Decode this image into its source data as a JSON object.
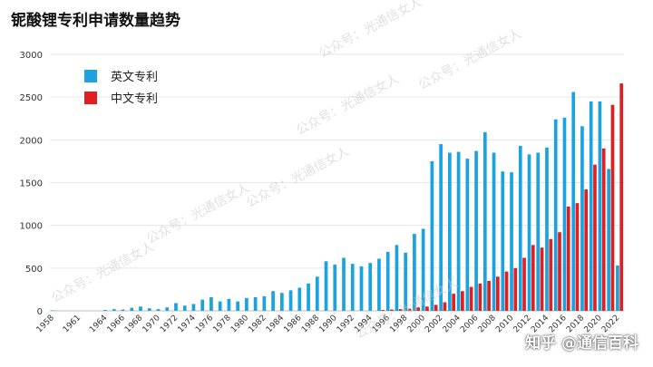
{
  "chart_data": {
    "type": "bar",
    "title": "铌酸锂专利申请数量趋势",
    "xlabel": "",
    "ylabel": "",
    "ylim": [
      0,
      3000
    ],
    "yticks": [
      0,
      500,
      1000,
      1500,
      2000,
      2500,
      3000
    ],
    "grid": true,
    "legend_position": "top-left",
    "categories": [
      "1958",
      "1959",
      "1960",
      "1961",
      "1962",
      "1963",
      "1964",
      "1965",
      "1966",
      "1967",
      "1968",
      "1969",
      "1970",
      "1971",
      "1972",
      "1973",
      "1974",
      "1975",
      "1976",
      "1977",
      "1978",
      "1979",
      "1980",
      "1981",
      "1982",
      "1983",
      "1984",
      "1985",
      "1986",
      "1987",
      "1988",
      "1989",
      "1990",
      "1991",
      "1992",
      "1993",
      "1994",
      "1995",
      "1996",
      "1997",
      "1998",
      "1999",
      "2000",
      "2001",
      "2002",
      "2003",
      "2004",
      "2005",
      "2006",
      "2007",
      "2008",
      "2009",
      "2010",
      "2011",
      "2012",
      "2013",
      "2014",
      "2015",
      "2016",
      "2017",
      "2018",
      "2019",
      "2020",
      "2021",
      "2022"
    ],
    "xtick_labels": [
      "1958",
      "1961",
      "1964",
      "1966",
      "1968",
      "1970",
      "1972",
      "1974",
      "1976",
      "1978",
      "1980",
      "1982",
      "1984",
      "1986",
      "1988",
      "1990",
      "1992",
      "1994",
      "1996",
      "1998",
      "2000",
      "2002",
      "2004",
      "2006",
      "2008",
      "2010",
      "2012",
      "2014",
      "2016",
      "2018",
      "2020",
      "2022"
    ],
    "series": [
      {
        "name": "英文专利",
        "color": "#1aa3e0",
        "values": [
          5,
          0,
          0,
          0,
          0,
          0,
          10,
          20,
          15,
          35,
          50,
          30,
          20,
          40,
          90,
          60,
          80,
          130,
          160,
          110,
          140,
          110,
          150,
          160,
          170,
          230,
          210,
          240,
          270,
          320,
          400,
          580,
          540,
          620,
          550,
          520,
          560,
          610,
          690,
          770,
          680,
          900,
          960,
          1750,
          1950,
          1850,
          1860,
          1780,
          1870,
          2090,
          1850,
          1630,
          1620,
          1930,
          1830,
          1850,
          1910,
          2240,
          2260,
          2560,
          2160,
          2450,
          2450,
          1660,
          530
        ]
      },
      {
        "name": "中文专利",
        "color": "#e02020",
        "values": [
          0,
          0,
          0,
          0,
          0,
          0,
          0,
          0,
          0,
          0,
          0,
          0,
          0,
          0,
          0,
          0,
          0,
          0,
          0,
          0,
          0,
          0,
          0,
          0,
          0,
          0,
          0,
          0,
          0,
          0,
          0,
          0,
          0,
          0,
          0,
          0,
          0,
          10,
          15,
          20,
          25,
          40,
          50,
          70,
          100,
          200,
          230,
          280,
          320,
          350,
          400,
          460,
          500,
          620,
          770,
          740,
          840,
          920,
          1220,
          1260,
          1420,
          1710,
          1900,
          2410,
          2660
        ]
      }
    ]
  },
  "watermark": "公众号：光通信女人",
  "brand_label": "知乎 @通信百科"
}
